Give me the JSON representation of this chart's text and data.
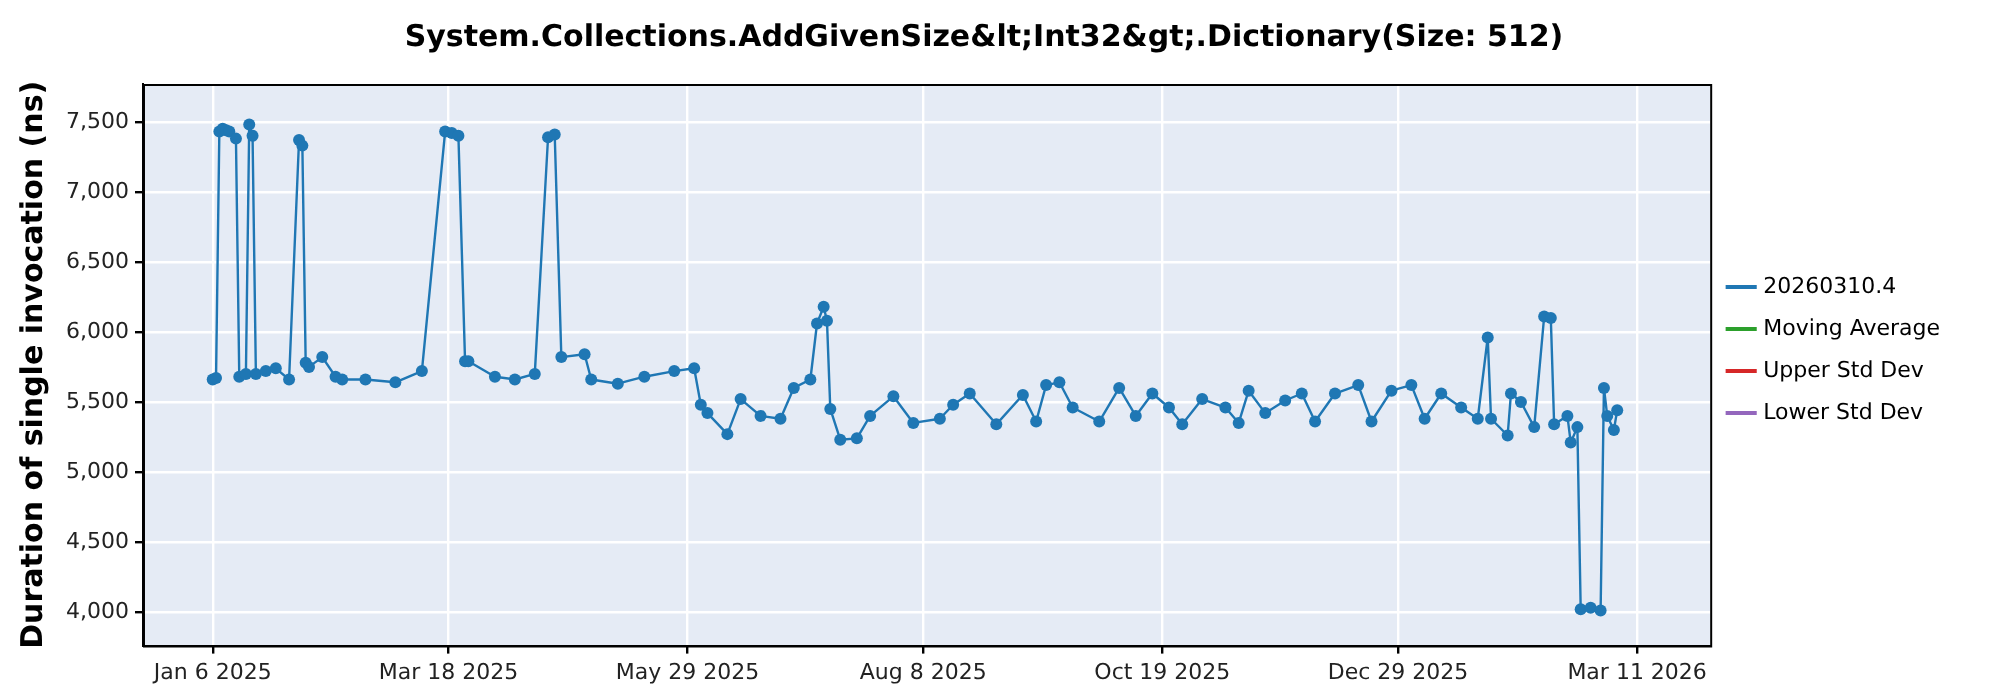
{
  "chart_data": {
    "type": "line",
    "title": "System.Collections.AddGivenSize&lt;Int32&gt;.Dictionary(Size: 512)",
    "ylabel": "Duration of single invocation (ns)",
    "x": [
      "2025-01-06",
      "2025-01-07",
      "2025-01-08",
      "2025-01-09",
      "2025-01-10",
      "2025-01-11",
      "2025-01-13",
      "2025-01-14",
      "2025-01-16",
      "2025-01-17",
      "2025-01-18",
      "2025-01-19",
      "2025-01-22",
      "2025-01-25",
      "2025-01-29",
      "2025-02-01",
      "2025-02-02",
      "2025-02-03",
      "2025-02-04",
      "2025-02-08",
      "2025-02-12",
      "2025-02-14",
      "2025-02-21",
      "2025-03-02",
      "2025-03-10",
      "2025-03-17",
      "2025-03-19",
      "2025-03-21",
      "2025-03-23",
      "2025-03-24",
      "2025-04-01",
      "2025-04-07",
      "2025-04-13",
      "2025-04-17",
      "2025-04-19",
      "2025-04-21",
      "2025-04-28",
      "2025-04-30",
      "2025-05-08",
      "2025-05-16",
      "2025-05-25",
      "2025-05-31",
      "2025-06-02",
      "2025-06-04",
      "2025-06-10",
      "2025-06-14",
      "2025-06-20",
      "2025-06-26",
      "2025-06-30",
      "2025-07-05",
      "2025-07-07",
      "2025-07-09",
      "2025-07-10",
      "2025-07-11",
      "2025-07-14",
      "2025-07-19",
      "2025-07-23",
      "2025-07-30",
      "2025-08-05",
      "2025-08-13",
      "2025-08-17",
      "2025-08-22",
      "2025-08-30",
      "2025-09-07",
      "2025-09-11",
      "2025-09-14",
      "2025-09-18",
      "2025-09-22",
      "2025-09-30",
      "2025-10-06",
      "2025-10-11",
      "2025-10-16",
      "2025-10-21",
      "2025-10-25",
      "2025-10-31",
      "2025-11-07",
      "2025-11-11",
      "2025-11-14",
      "2025-11-19",
      "2025-11-25",
      "2025-11-30",
      "2025-12-04",
      "2025-12-10",
      "2025-12-17",
      "2025-12-21",
      "2025-12-27",
      "2026-01-02",
      "2026-01-06",
      "2026-01-11",
      "2026-01-17",
      "2026-01-22",
      "2026-01-25",
      "2026-01-26",
      "2026-01-31",
      "2026-02-01",
      "2026-02-04",
      "2026-02-08",
      "2026-02-11",
      "2026-02-13",
      "2026-02-14",
      "2026-02-18",
      "2026-02-19",
      "2026-02-21",
      "2026-02-22",
      "2026-02-25",
      "2026-02-28",
      "2026-03-01",
      "2026-03-02",
      "2026-03-04",
      "2026-03-05"
    ],
    "series": [
      {
        "name": "20260310.4",
        "color": "#1f77b4",
        "values": [
          5660,
          5670,
          7430,
          7450,
          7440,
          7430,
          7380,
          5680,
          5700,
          7480,
          7400,
          5700,
          5720,
          5740,
          5660,
          7370,
          7330,
          5780,
          5750,
          5820,
          5680,
          5660,
          5660,
          5640,
          5720,
          7430,
          7420,
          7400,
          5790,
          5790,
          5680,
          5660,
          5700,
          7390,
          7410,
          5820,
          5840,
          5660,
          5630,
          5680,
          5720,
          5740,
          5480,
          5420,
          5270,
          5520,
          5400,
          5380,
          5600,
          5660,
          6060,
          6180,
          6080,
          5450,
          5230,
          5240,
          5400,
          5540,
          5350,
          5380,
          5480,
          5560,
          5340,
          5550,
          5360,
          5620,
          5640,
          5460,
          5360,
          5600,
          5400,
          5560,
          5460,
          5340,
          5520,
          5460,
          5350,
          5580,
          5420,
          5510,
          5560,
          5360,
          5560,
          5620,
          5360,
          5580,
          5620,
          5380,
          5560,
          5460,
          5380,
          5960,
          5380,
          5260,
          5560,
          5500,
          5320,
          6110,
          6100,
          5340,
          5400,
          5210,
          5320,
          4020,
          4030,
          4010,
          5600,
          5400,
          5300,
          5440
        ]
      },
      {
        "name": "Moving Average",
        "color": "#2ca02c",
        "values": [
          null,
          null,
          null,
          null,
          null,
          null,
          null,
          null,
          null,
          null,
          null,
          null,
          null,
          null,
          null,
          null,
          null,
          null,
          null,
          null,
          null,
          null,
          null,
          null,
          null,
          null,
          null,
          null,
          null,
          null,
          null,
          null,
          null,
          null,
          null,
          null,
          null,
          null,
          null,
          null,
          null,
          null,
          null,
          null,
          null,
          null,
          null,
          null,
          null,
          null,
          null,
          null,
          null,
          null,
          null,
          null,
          null,
          null,
          null,
          null,
          null,
          null,
          null,
          null,
          null,
          null,
          null,
          null,
          null,
          null,
          null,
          null,
          null,
          null,
          null,
          null,
          null,
          null,
          null,
          null,
          null,
          null,
          null,
          null,
          null,
          null,
          null,
          null,
          null,
          null,
          null,
          null,
          null,
          null,
          null,
          null,
          null,
          null,
          null,
          null,
          null,
          null,
          null,
          null,
          null,
          null,
          null,
          null,
          null,
          null
        ]
      },
      {
        "name": "Upper Std Dev",
        "color": "#d62728",
        "values": [
          null,
          null,
          null,
          null,
          null,
          null,
          null,
          null,
          null,
          null,
          null,
          null,
          null,
          null,
          null,
          null,
          null,
          null,
          null,
          null,
          null,
          null,
          null,
          null,
          null,
          null,
          null,
          null,
          null,
          null,
          null,
          null,
          null,
          null,
          null,
          null,
          null,
          null,
          null,
          null,
          null,
          null,
          null,
          null,
          null,
          null,
          null,
          null,
          null,
          null,
          null,
          null,
          null,
          null,
          null,
          null,
          null,
          null,
          null,
          null,
          null,
          null,
          null,
          null,
          null,
          null,
          null,
          null,
          null,
          null,
          null,
          null,
          null,
          null,
          null,
          null,
          null,
          null,
          null,
          null,
          null,
          null,
          null,
          null,
          null,
          null,
          null,
          null,
          null,
          null,
          null,
          null,
          null,
          null,
          null,
          null,
          null,
          null,
          null,
          null,
          null,
          null,
          null,
          null,
          null,
          null,
          null,
          null,
          null,
          null
        ]
      },
      {
        "name": "Lower Std Dev",
        "color": "#9467bd",
        "values": [
          null,
          null,
          null,
          null,
          null,
          null,
          null,
          null,
          null,
          null,
          null,
          null,
          null,
          null,
          null,
          null,
          null,
          null,
          null,
          null,
          null,
          null,
          null,
          null,
          null,
          null,
          null,
          null,
          null,
          null,
          null,
          null,
          null,
          null,
          null,
          null,
          null,
          null,
          null,
          null,
          null,
          null,
          null,
          null,
          null,
          null,
          null,
          null,
          null,
          null,
          null,
          null,
          null,
          null,
          null,
          null,
          null,
          null,
          null,
          null,
          null,
          null,
          null,
          null,
          null,
          null,
          null,
          null,
          null,
          null,
          null,
          null,
          null,
          null,
          null,
          null,
          null,
          null,
          null,
          null,
          null,
          null,
          null,
          null,
          null,
          null,
          null,
          null,
          null,
          null,
          null,
          null,
          null,
          null,
          null,
          null,
          null,
          null,
          null,
          null,
          null,
          null,
          null,
          null,
          null,
          null,
          null,
          null,
          null,
          null
        ]
      }
    ],
    "xlim": [
      "2024-12-16",
      "2026-04-02"
    ],
    "xticks": [
      {
        "value": "2025-01-06",
        "label": "Jan 6 2025"
      },
      {
        "value": "2025-03-18",
        "label": "Mar 18 2025"
      },
      {
        "value": "2025-05-29",
        "label": "May 29 2025"
      },
      {
        "value": "2025-08-08",
        "label": "Aug 8 2025"
      },
      {
        "value": "2025-10-19",
        "label": "Oct 19 2025"
      },
      {
        "value": "2025-12-29",
        "label": "Dec 29 2025"
      },
      {
        "value": "2026-03-11",
        "label": "Mar 11 2026"
      }
    ],
    "ylim": [
      3760,
      7770
    ],
    "yticks": [
      {
        "value": 4000,
        "label": "4,000"
      },
      {
        "value": 4500,
        "label": "4,500"
      },
      {
        "value": 5000,
        "label": "5,000"
      },
      {
        "value": 5500,
        "label": "5,500"
      },
      {
        "value": 6000,
        "label": "6,000"
      },
      {
        "value": 6500,
        "label": "6,500"
      },
      {
        "value": 7000,
        "label": "7,000"
      },
      {
        "value": 7500,
        "label": "7,500"
      }
    ],
    "grid": true,
    "legend": "right",
    "marker": "circle",
    "line_style": "solid"
  }
}
